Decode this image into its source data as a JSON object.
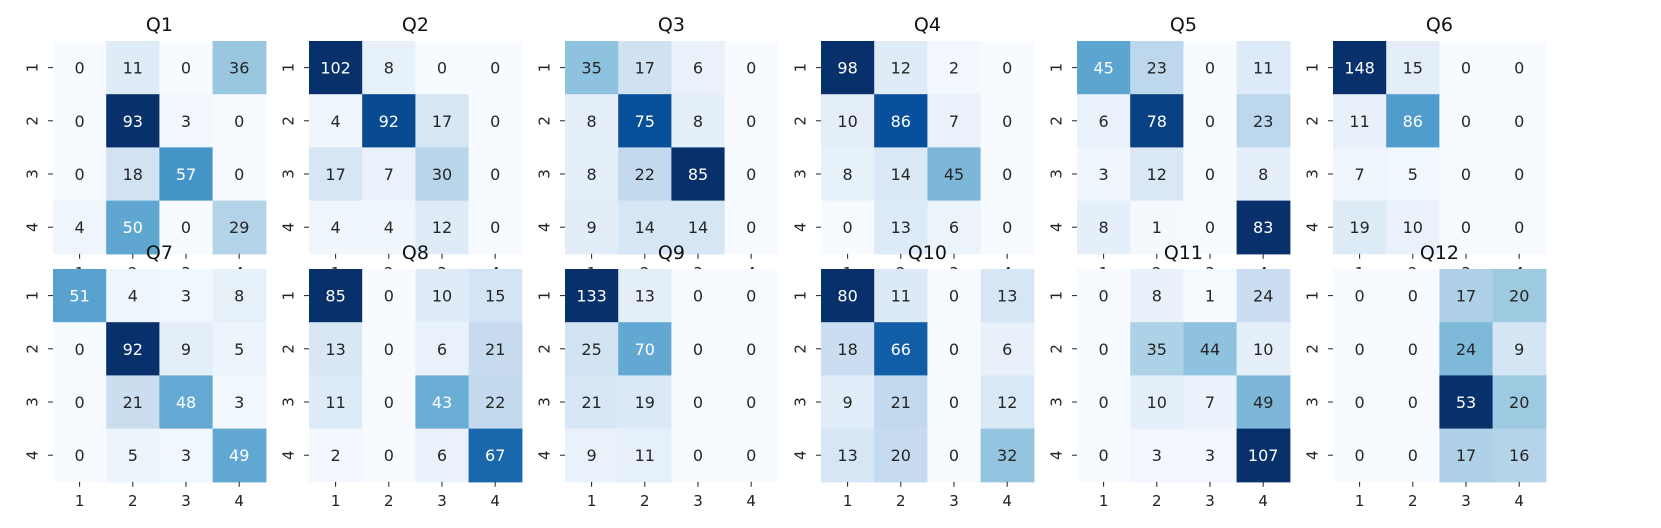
{
  "chart_data": [
    {
      "type": "heatmap",
      "title": "Q1",
      "xlabels": [
        "1",
        "2",
        "3",
        "4"
      ],
      "ylabels": [
        "1",
        "2",
        "3",
        "4"
      ],
      "values": [
        [
          0,
          11,
          0,
          36
        ],
        [
          0,
          93,
          3,
          0
        ],
        [
          0,
          18,
          57,
          0
        ],
        [
          4,
          50,
          0,
          29
        ]
      ]
    },
    {
      "type": "heatmap",
      "title": "Q2",
      "xlabels": [
        "1",
        "2",
        "3",
        "4"
      ],
      "ylabels": [
        "1",
        "2",
        "3",
        "4"
      ],
      "values": [
        [
          102,
          8,
          0,
          0
        ],
        [
          4,
          92,
          17,
          0
        ],
        [
          17,
          7,
          30,
          0
        ],
        [
          4,
          4,
          12,
          0
        ]
      ]
    },
    {
      "type": "heatmap",
      "title": "Q3",
      "xlabels": [
        "1",
        "2",
        "3",
        "4"
      ],
      "ylabels": [
        "1",
        "2",
        "3",
        "4"
      ],
      "values": [
        [
          35,
          17,
          6,
          0
        ],
        [
          8,
          75,
          8,
          0
        ],
        [
          8,
          22,
          85,
          0
        ],
        [
          9,
          14,
          14,
          0
        ]
      ]
    },
    {
      "type": "heatmap",
      "title": "Q4",
      "xlabels": [
        "1",
        "2",
        "3",
        "4"
      ],
      "ylabels": [
        "1",
        "2",
        "3",
        "4"
      ],
      "values": [
        [
          98,
          12,
          2,
          0
        ],
        [
          10,
          86,
          7,
          0
        ],
        [
          8,
          14,
          45,
          0
        ],
        [
          0,
          13,
          6,
          0
        ]
      ]
    },
    {
      "type": "heatmap",
      "title": "Q5",
      "xlabels": [
        "1",
        "2",
        "3",
        "4"
      ],
      "ylabels": [
        "1",
        "2",
        "3",
        "4"
      ],
      "values": [
        [
          45,
          23,
          0,
          11
        ],
        [
          6,
          78,
          0,
          23
        ],
        [
          3,
          12,
          0,
          8
        ],
        [
          8,
          1,
          0,
          83
        ]
      ]
    },
    {
      "type": "heatmap",
      "title": "Q6",
      "xlabels": [
        "1",
        "2",
        "3",
        "4"
      ],
      "ylabels": [
        "1",
        "2",
        "3",
        "4"
      ],
      "values": [
        [
          148,
          15,
          0,
          0
        ],
        [
          11,
          86,
          0,
          0
        ],
        [
          7,
          5,
          0,
          0
        ],
        [
          19,
          10,
          0,
          0
        ]
      ]
    },
    {
      "type": "heatmap",
      "title": "Q7",
      "xlabels": [
        "1",
        "2",
        "3",
        "4"
      ],
      "ylabels": [
        "1",
        "2",
        "3",
        "4"
      ],
      "values": [
        [
          51,
          4,
          3,
          8
        ],
        [
          0,
          92,
          9,
          5
        ],
        [
          0,
          21,
          48,
          3
        ],
        [
          0,
          5,
          3,
          49
        ]
      ]
    },
    {
      "type": "heatmap",
      "title": "Q8",
      "xlabels": [
        "1",
        "2",
        "3",
        "4"
      ],
      "ylabels": [
        "1",
        "2",
        "3",
        "4"
      ],
      "values": [
        [
          85,
          0,
          10,
          15
        ],
        [
          13,
          0,
          6,
          21
        ],
        [
          11,
          0,
          43,
          22
        ],
        [
          2,
          0,
          6,
          67
        ]
      ]
    },
    {
      "type": "heatmap",
      "title": "Q9",
      "xlabels": [
        "1",
        "2",
        "3",
        "4"
      ],
      "ylabels": [
        "1",
        "2",
        "3",
        "4"
      ],
      "values": [
        [
          133,
          13,
          0,
          0
        ],
        [
          25,
          70,
          0,
          0
        ],
        [
          21,
          19,
          0,
          0
        ],
        [
          9,
          11,
          0,
          0
        ]
      ]
    },
    {
      "type": "heatmap",
      "title": "Q10",
      "xlabels": [
        "1",
        "2",
        "3",
        "4"
      ],
      "ylabels": [
        "1",
        "2",
        "3",
        "4"
      ],
      "values": [
        [
          80,
          11,
          0,
          13
        ],
        [
          18,
          66,
          0,
          6
        ],
        [
          9,
          21,
          0,
          12
        ],
        [
          13,
          20,
          0,
          32
        ]
      ]
    },
    {
      "type": "heatmap",
      "title": "Q11",
      "xlabels": [
        "1",
        "2",
        "3",
        "4"
      ],
      "ylabels": [
        "1",
        "2",
        "3",
        "4"
      ],
      "values": [
        [
          0,
          8,
          1,
          24
        ],
        [
          0,
          35,
          44,
          10
        ],
        [
          0,
          10,
          7,
          49
        ],
        [
          0,
          3,
          3,
          107
        ]
      ]
    },
    {
      "type": "heatmap",
      "title": "Q12",
      "xlabels": [
        "1",
        "2",
        "3",
        "4"
      ],
      "ylabels": [
        "1",
        "2",
        "3",
        "4"
      ],
      "values": [
        [
          0,
          0,
          17,
          20
        ],
        [
          0,
          0,
          24,
          9
        ],
        [
          0,
          0,
          53,
          20
        ],
        [
          0,
          0,
          17,
          16
        ]
      ]
    }
  ],
  "colormap": {
    "name": "Blues",
    "low": "#f7fbff",
    "high": "#08306b",
    "colorbar": false,
    "annotated": true
  }
}
